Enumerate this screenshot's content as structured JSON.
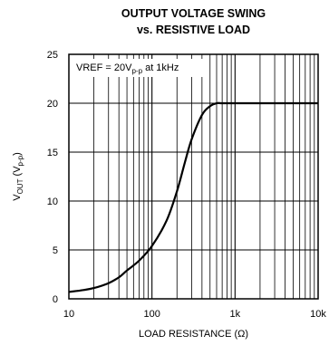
{
  "chart_data": {
    "type": "line",
    "title": "OUTPUT VOLTAGE SWING",
    "subtitle": "vs. RESISTIVE LOAD",
    "xlabel": "LOAD RESISTANCE (Ω)",
    "ylabel": {
      "main": "V",
      "sub1": "OUT",
      "mid": " (V",
      "sub2": "p-p",
      "end": ")"
    },
    "x_scale": "log",
    "xlim": [
      10,
      10000
    ],
    "ylim": [
      0,
      25
    ],
    "x_ticks": [
      10,
      100,
      1000,
      10000
    ],
    "x_tick_labels": [
      "10",
      "100",
      "1k",
      "10k"
    ],
    "y_ticks": [
      0,
      5,
      10,
      15,
      20,
      25
    ],
    "y_tick_labels": [
      "0",
      "5",
      "10",
      "15",
      "20",
      "25"
    ],
    "grid": true,
    "annotation": {
      "main": "VREF = 20V",
      "sub": "p-p",
      "end": " at 1kHz"
    },
    "series": [
      {
        "color": "#000000",
        "x": [
          10,
          15,
          20,
          30,
          40,
          50,
          70,
          100,
          150,
          200,
          250,
          300,
          400,
          500,
          600,
          700,
          1000,
          2000,
          5000,
          10000
        ],
        "y": [
          0.7,
          0.9,
          1.1,
          1.6,
          2.2,
          2.9,
          3.9,
          5.4,
          8.0,
          11.0,
          14.0,
          16.3,
          18.8,
          19.7,
          20.0,
          20.0,
          20.0,
          20.0,
          20.0,
          20.0
        ]
      }
    ]
  }
}
